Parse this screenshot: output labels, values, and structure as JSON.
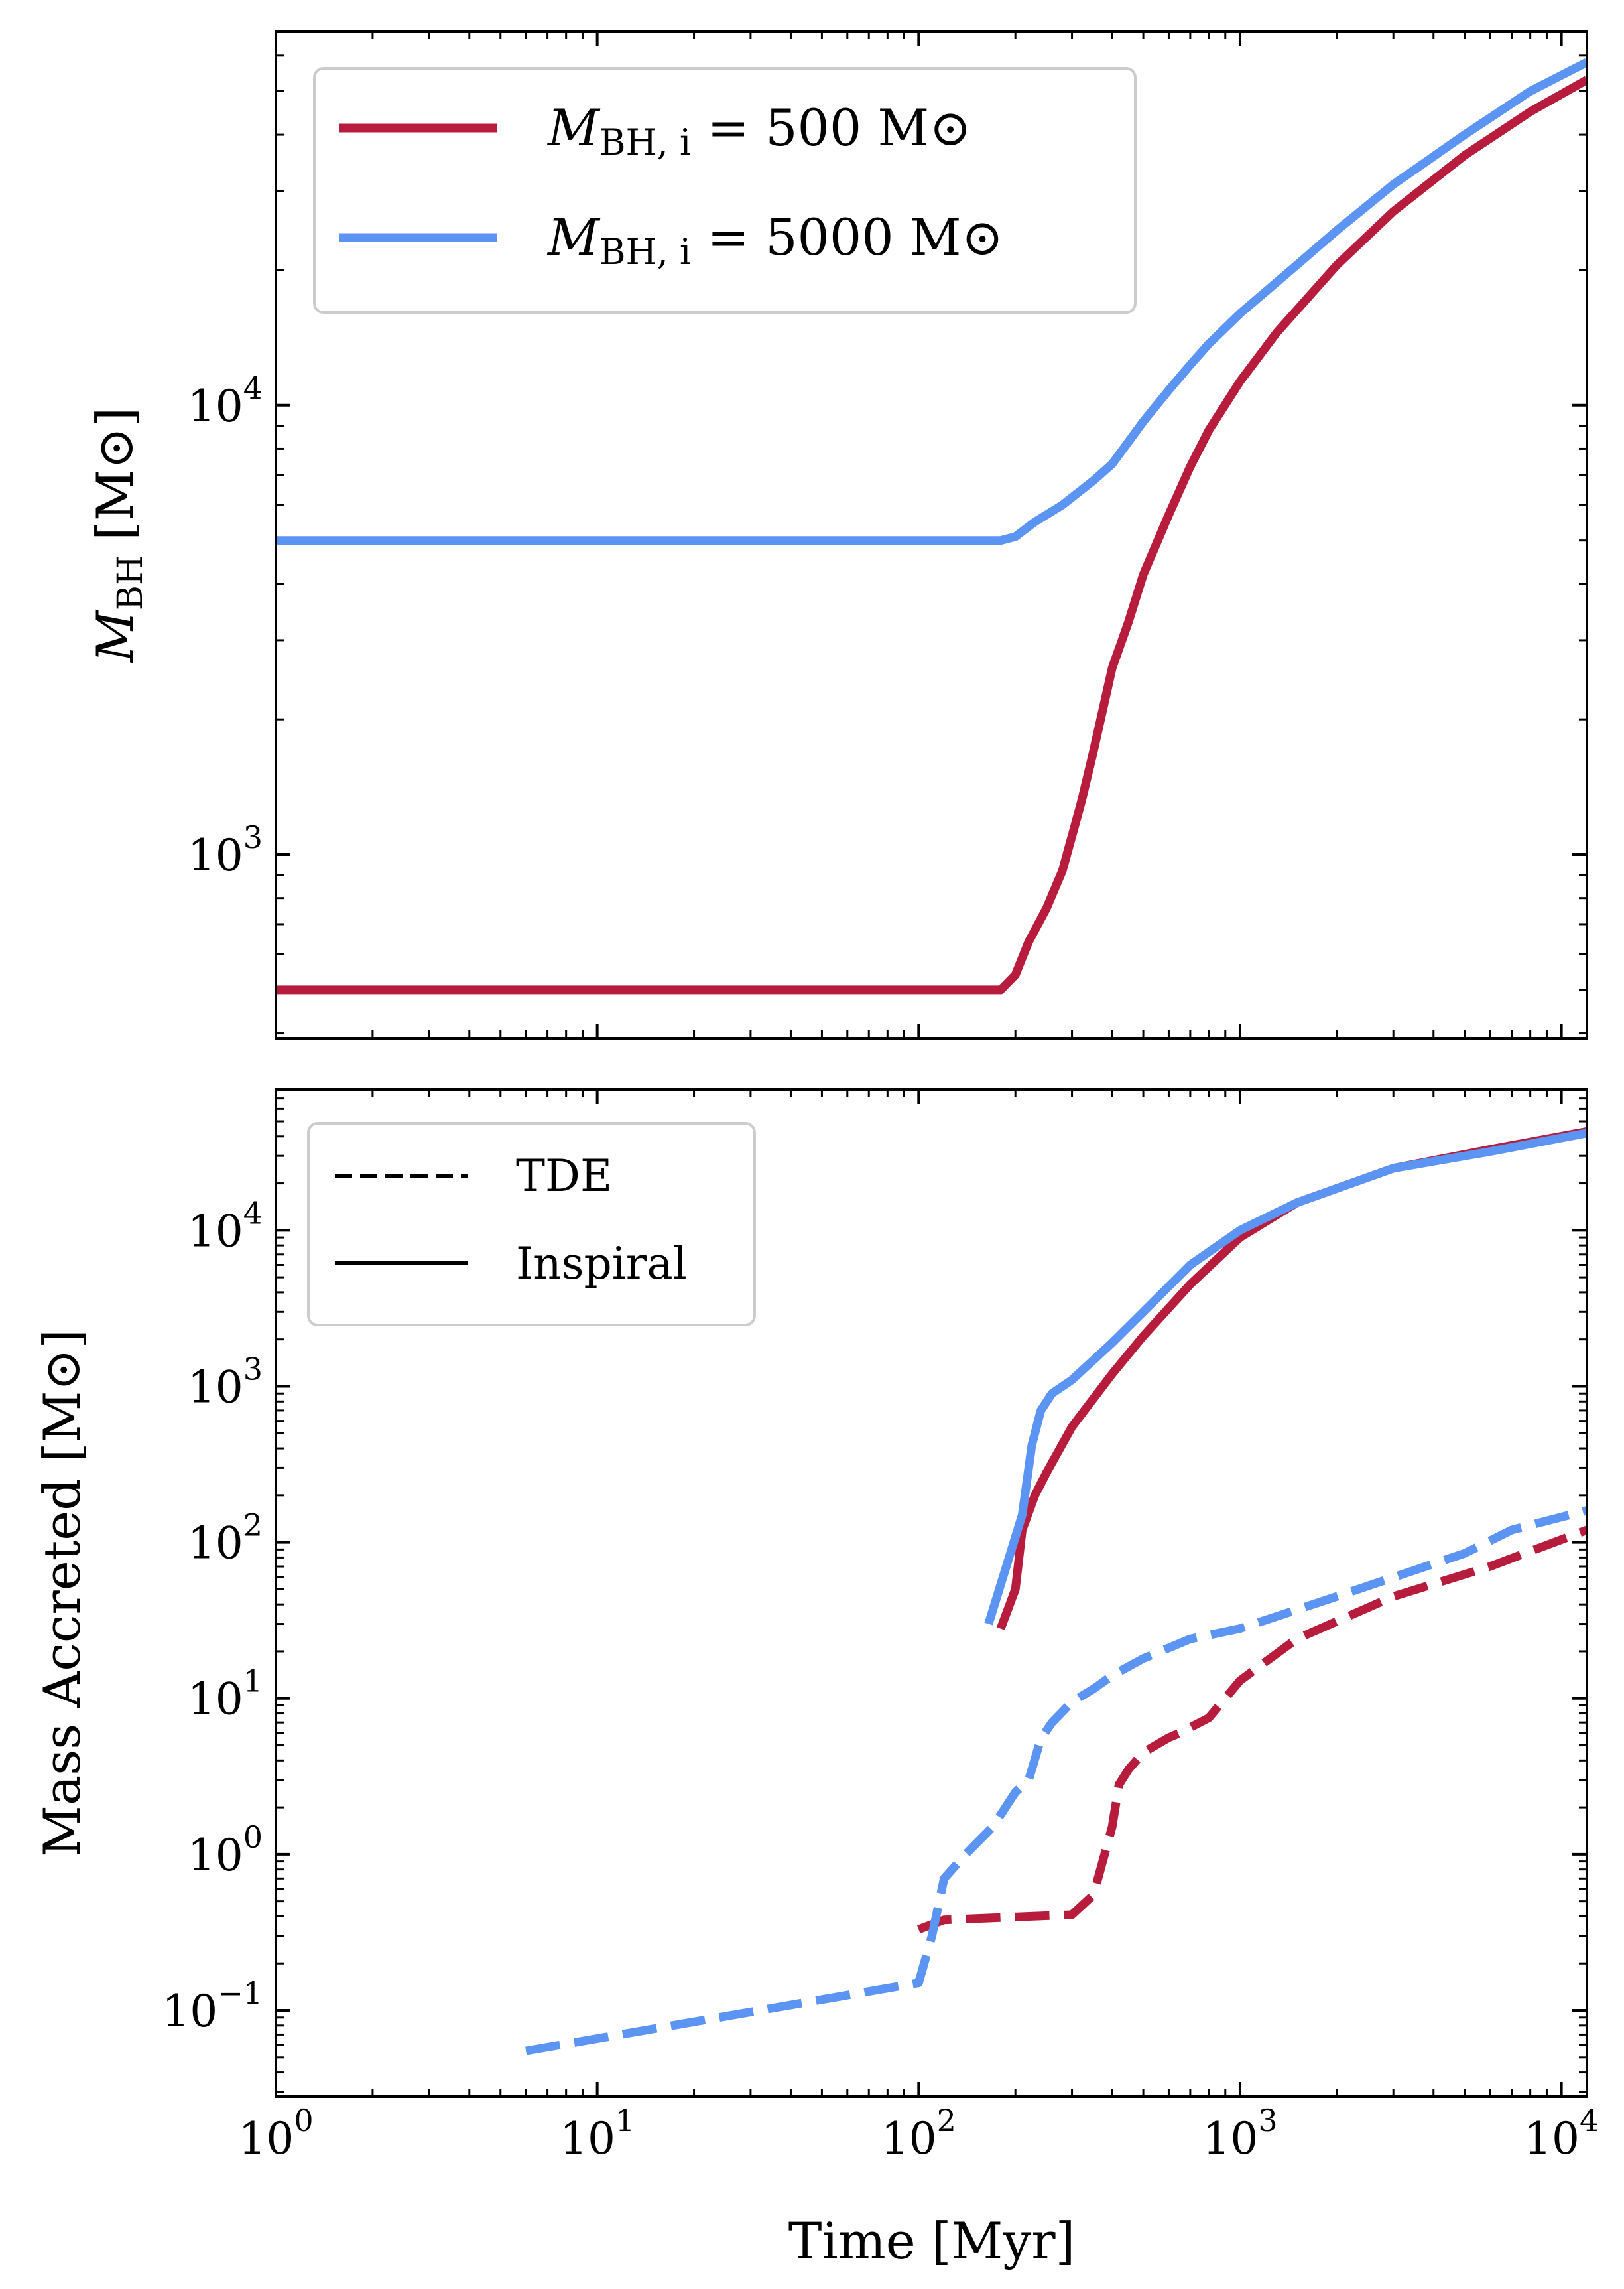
{
  "colors": {
    "red": "#b81c3c",
    "blue": "#5b94f2"
  },
  "chart_data": [
    {
      "type": "line",
      "xscale": "log",
      "yscale": "log",
      "xlim": [
        1,
        12000
      ],
      "ylim": [
        390,
        68000
      ],
      "xlabel": "",
      "ylabel": "M_BH [M⊙]",
      "ylabel_parts": {
        "main": "M",
        "sub": "BH",
        "unit": "[M⊙]"
      },
      "yticks": [
        {
          "value": 1000,
          "base": "10",
          "exp": "3"
        },
        {
          "value": 10000,
          "base": "10",
          "exp": "4"
        }
      ],
      "legend_position": "top-left",
      "series": [
        {
          "name": "M_BH,i = 500 M⊙",
          "label_parts": {
            "main": "M",
            "sub": "BH, i",
            "rest": " = 500 M⊙"
          },
          "color": "#b81c3c",
          "style": "solid",
          "x": [
            1,
            100,
            180,
            200,
            220,
            250,
            280,
            320,
            350,
            400,
            450,
            500,
            600,
            700,
            800,
            1000,
            1300,
            2000,
            3000,
            5000,
            8000,
            12000
          ],
          "y": [
            500,
            500,
            500,
            540,
            640,
            760,
            920,
            1300,
            1700,
            2600,
            3300,
            4200,
            5700,
            7300,
            8800,
            11300,
            14500,
            20500,
            27000,
            36000,
            45000,
            53000
          ]
        },
        {
          "name": "M_BH,i = 5000 M⊙",
          "label_parts": {
            "main": "M",
            "sub": "BH, i",
            "rest": " = 5000 M⊙"
          },
          "color": "#5b94f2",
          "style": "solid",
          "x": [
            1,
            100,
            180,
            200,
            230,
            280,
            350,
            400,
            450,
            500,
            600,
            700,
            800,
            1000,
            1500,
            2000,
            3000,
            5000,
            8000,
            12000
          ],
          "y": [
            5000,
            5000,
            5000,
            5100,
            5500,
            6000,
            6800,
            7400,
            8300,
            9200,
            10800,
            12300,
            13700,
            16000,
            20500,
            24500,
            31000,
            40000,
            50000,
            58000
          ]
        }
      ]
    },
    {
      "type": "line",
      "xscale": "log",
      "yscale": "log",
      "xlim": [
        1,
        12000
      ],
      "ylim": [
        0.028,
        80000
      ],
      "xlabel": "Time [Myr]",
      "ylabel": "Mass Accreted [M⊙]",
      "ylabel_parts": {
        "main": "Mass Accreted ",
        "unit": "[M⊙]"
      },
      "xticks": [
        {
          "value": 1,
          "base": "10",
          "exp": "0"
        },
        {
          "value": 10,
          "base": "10",
          "exp": "1"
        },
        {
          "value": 100,
          "base": "10",
          "exp": "2"
        },
        {
          "value": 1000,
          "base": "10",
          "exp": "3"
        },
        {
          "value": 10000,
          "base": "10",
          "exp": "4"
        }
      ],
      "yticks": [
        {
          "value": 0.1,
          "base": "10",
          "exp": "−1"
        },
        {
          "value": 1,
          "base": "10",
          "exp": "0"
        },
        {
          "value": 10,
          "base": "10",
          "exp": "1"
        },
        {
          "value": 100,
          "base": "10",
          "exp": "2"
        },
        {
          "value": 1000,
          "base": "10",
          "exp": "3"
        },
        {
          "value": 10000,
          "base": "10",
          "exp": "4"
        }
      ],
      "legend_position": "top-left",
      "legend": [
        {
          "label": "TDE",
          "style": "dashed"
        },
        {
          "label": "Inspiral",
          "style": "solid"
        }
      ],
      "series": [
        {
          "color": "#b81c3c",
          "style": "dashed",
          "x": [
            100,
            120,
            300,
            350,
            400,
            420,
            450,
            500,
            600,
            650,
            800,
            1000,
            1500,
            3000,
            6000,
            12000
          ],
          "y": [
            0.33,
            0.38,
            0.41,
            0.55,
            1.5,
            2.8,
            3.5,
            4.5,
            5.6,
            6.0,
            7.5,
            13,
            24,
            45,
            70,
            120
          ]
        },
        {
          "color": "#5b94f2",
          "style": "dashed",
          "x": [
            6,
            100,
            110,
            120,
            140,
            170,
            200,
            220,
            240,
            260,
            300,
            350,
            400,
            500,
            700,
            1000,
            2000,
            5000,
            7000,
            12000
          ],
          "y": [
            0.055,
            0.15,
            0.3,
            0.7,
            1.0,
            1.5,
            2.5,
            3.0,
            5.5,
            7.0,
            9.5,
            11.5,
            14,
            18,
            24,
            28,
            45,
            85,
            120,
            160
          ]
        },
        {
          "color": "#b81c3c",
          "style": "solid",
          "x": [
            180,
            200,
            210,
            230,
            250,
            300,
            400,
            500,
            700,
            1000,
            1500,
            3000,
            6000,
            12000
          ],
          "y": [
            28,
            50,
            120,
            200,
            280,
            550,
            1200,
            2100,
            4500,
            9000,
            15000,
            25000,
            33000,
            43000
          ]
        },
        {
          "color": "#5b94f2",
          "style": "solid",
          "x": [
            165,
            210,
            225,
            240,
            260,
            300,
            400,
            500,
            700,
            1000,
            1500,
            3000,
            6000,
            12000
          ],
          "y": [
            30,
            150,
            420,
            700,
            900,
            1100,
            1900,
            3000,
            6000,
            10000,
            15000,
            25000,
            32000,
            42000
          ]
        }
      ]
    }
  ]
}
